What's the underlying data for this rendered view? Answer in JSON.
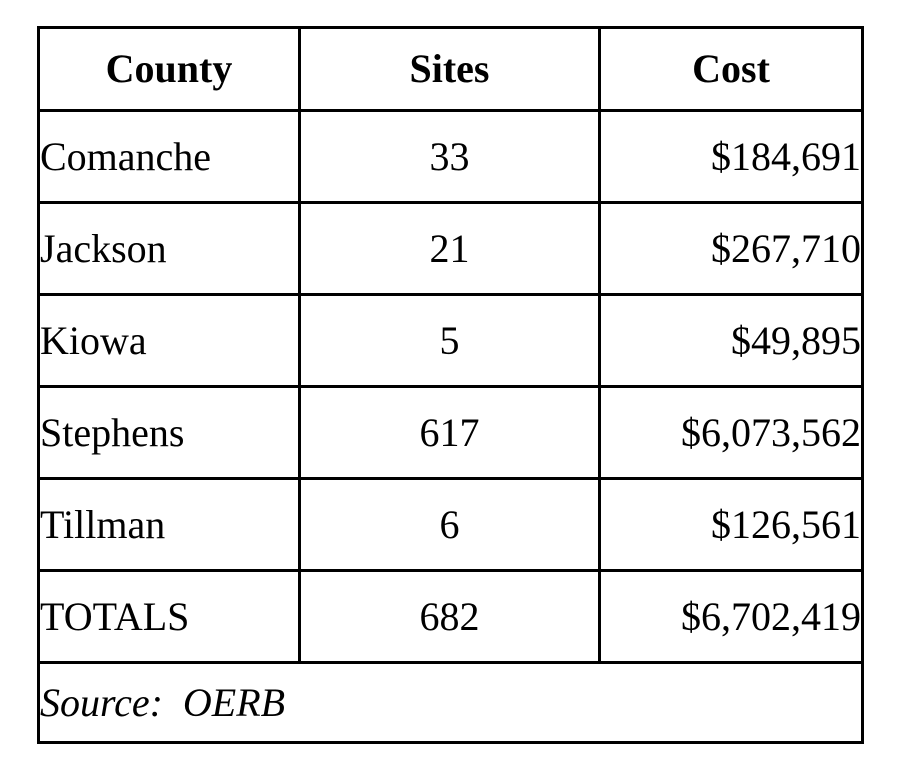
{
  "table": {
    "headers": {
      "county": "County",
      "sites": "Sites",
      "cost": "Cost"
    },
    "rows": [
      {
        "county": "Comanche",
        "sites": "33",
        "cost": "$184,691"
      },
      {
        "county": "Jackson",
        "sites": "21",
        "cost": "$267,710"
      },
      {
        "county": "Kiowa",
        "sites": "5",
        "cost": "$49,895"
      },
      {
        "county": "Stephens",
        "sites": "617",
        "cost": "$6,073,562"
      },
      {
        "county": "Tillman",
        "sites": "6",
        "cost": "$126,561"
      }
    ],
    "totals": {
      "county": "TOTALS",
      "sites": "682",
      "cost": "$6,702,419"
    },
    "source": "Source:  OERB"
  }
}
